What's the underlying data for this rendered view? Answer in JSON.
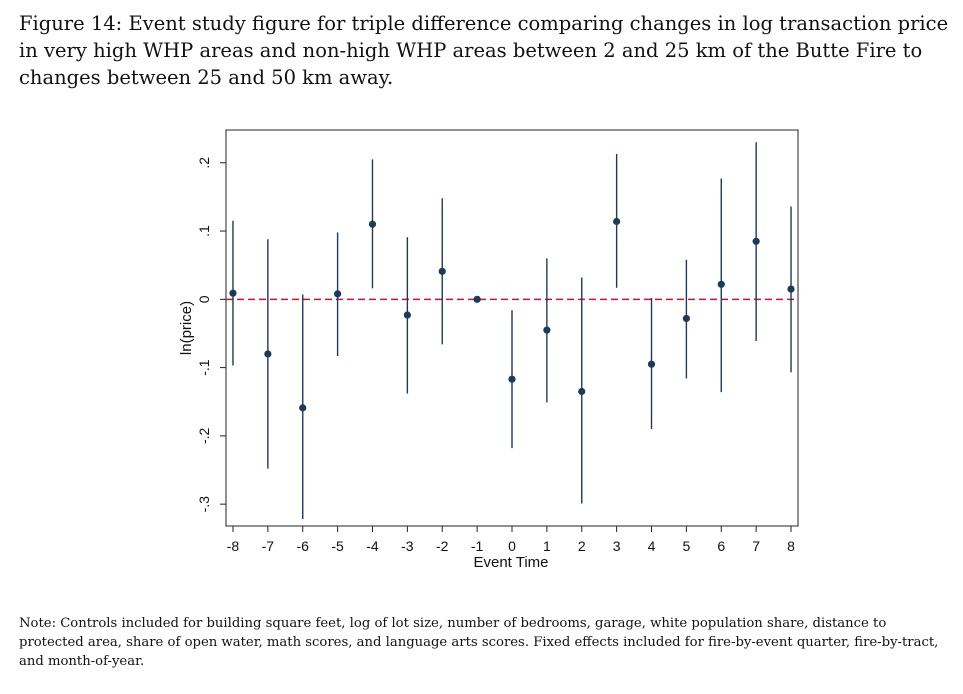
{
  "caption": "Figure 14: Event study figure for triple difference comparing changes in log transaction price in very high WHP areas and non-high WHP areas between 2 and 25 km of the Butte Fire to changes between 25 and 50 km away.",
  "note": "Note: Controls included for building square feet, log of lot size, number of bedrooms, garage, white population share, distance to protected area, share of open water, math scores, and language arts scores. Fixed effects included for fire-by-event quarter, fire-by-tract, and month-of-year.",
  "chart_data": {
    "type": "scatter",
    "style": "coefficient plot with confidence intervals",
    "xlabel": "Event Time",
    "ylabel": "ln(price)",
    "x": [
      -8,
      -7,
      -6,
      -5,
      -4,
      -3,
      -2,
      -1,
      0,
      1,
      2,
      3,
      4,
      5,
      6,
      7,
      8
    ],
    "y": [
      0.009,
      -0.08,
      -0.159,
      0.008,
      0.11,
      -0.023,
      0.041,
      0.0,
      -0.117,
      -0.045,
      -0.135,
      0.114,
      -0.095,
      -0.028,
      0.022,
      0.085,
      0.015
    ],
    "ci_low": [
      -0.097,
      -0.248,
      -0.322,
      -0.083,
      0.016,
      -0.138,
      -0.066,
      0.0,
      -0.218,
      -0.151,
      -0.299,
      0.017,
      -0.19,
      -0.116,
      -0.136,
      -0.061,
      -0.107
    ],
    "ci_high": [
      0.115,
      0.088,
      0.007,
      0.098,
      0.205,
      0.091,
      0.148,
      0.0,
      -0.016,
      0.06,
      0.032,
      0.213,
      0.002,
      0.058,
      0.177,
      0.23,
      0.136
    ],
    "xticks": [
      "-8",
      "-7",
      "-6",
      "-5",
      "-4",
      "-3",
      "-2",
      "-1",
      "0",
      "1",
      "2",
      "3",
      "4",
      "5",
      "6",
      "7",
      "8"
    ],
    "yticks": [
      "-.3",
      "-.2",
      "-.1",
      "0",
      ".1",
      ".2"
    ],
    "ytick_values": [
      -0.3,
      -0.2,
      -0.1,
      0,
      0.1,
      0.2
    ],
    "xlim": [
      -8.2,
      8.2
    ],
    "ylim": [
      -0.332,
      0.248
    ],
    "reference_line": {
      "y": 0,
      "style": "dashed",
      "color": "#c0163c"
    },
    "marker_color": "#1f3a56",
    "grid": false,
    "legend": "none"
  }
}
